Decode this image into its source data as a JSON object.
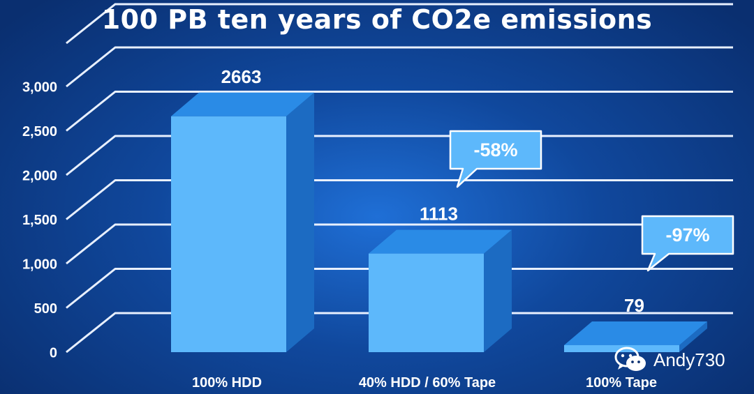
{
  "chart_data": {
    "type": "bar",
    "title": "100 PB ten years of CO2e emissions",
    "xlabel": "",
    "ylabel": "",
    "categories": [
      "100% HDD",
      "40% HDD / 60% Tape",
      "100% Tape"
    ],
    "values": [
      2663,
      1113,
      79
    ],
    "value_labels": [
      "2663",
      "1113",
      "79"
    ],
    "ylim": [
      0,
      3000
    ],
    "y_ticks": [
      0,
      500,
      1000,
      1500,
      2000,
      2500,
      3000
    ],
    "y_tick_labels": [
      "0",
      "500",
      "1,000",
      "1,500",
      "2,000",
      "2,500",
      "3,000"
    ],
    "grid": true,
    "callouts": [
      {
        "category": "40% HDD / 60% Tape",
        "text": "-58%"
      },
      {
        "category": "100% Tape",
        "text": "-97%"
      }
    ]
  },
  "colors": {
    "bar_front": "#5db8fb",
    "bar_top": "#2a8be6",
    "bar_side": "#1c6bc2",
    "grid": "#e8f0ff",
    "text": "#ffffff",
    "callout_fill": "#5db8fb",
    "callout_border": "#ffffff"
  },
  "watermark": {
    "text": "Andy730"
  }
}
